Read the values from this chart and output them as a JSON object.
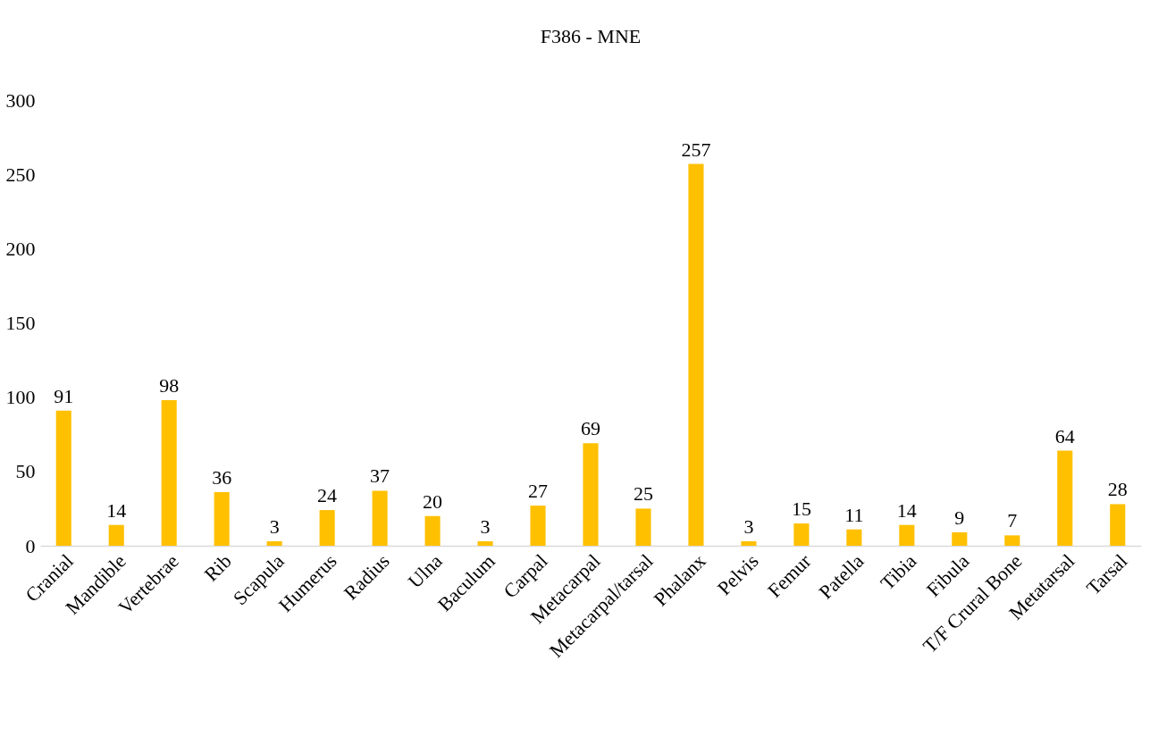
{
  "chart_data": {
    "type": "bar",
    "title": "F386 - MNE",
    "categories": [
      "Cranial",
      "Mandible",
      "Vertebrae",
      "Rib",
      "Scapula",
      "Humerus",
      "Radius",
      "Ulna",
      "Baculum",
      "Carpal",
      "Metacarpal",
      "Metacarpal/tarsal",
      "Phalanx",
      "Pelvis",
      "Femur",
      "Patella",
      "Tibia",
      "Fibula",
      "T/F Crural Bone",
      "Metatarsal",
      "Tarsal"
    ],
    "values": [
      91,
      14,
      98,
      36,
      3,
      24,
      37,
      20,
      3,
      27,
      69,
      25,
      257,
      3,
      15,
      11,
      14,
      9,
      7,
      64,
      28
    ],
    "color": "#ffc000",
    "ylim": [
      0,
      300
    ],
    "yticks": [
      0,
      50,
      100,
      150,
      200,
      250,
      300
    ],
    "grid": false,
    "data_labels": true
  }
}
